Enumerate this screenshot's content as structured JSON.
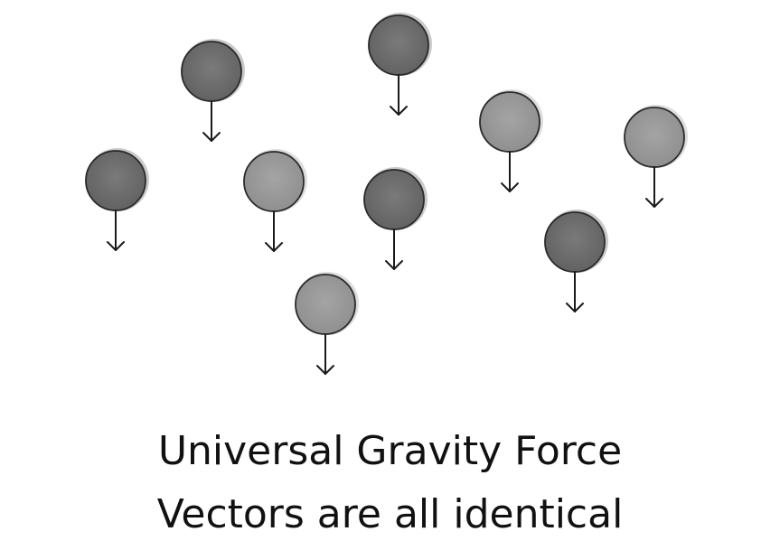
{
  "caption": {
    "line1": "Universal Gravity Force",
    "line2": "Vectors are all identical"
  },
  "colors": {
    "ball_dark": "#6f6f6f",
    "ball_light": "#9b9b9b",
    "ball_outline": "#2a2a2a",
    "arrow": "#1a1a1a"
  },
  "icons": {
    "ball": "ball-icon",
    "arrow": "arrow-down-icon"
  }
}
